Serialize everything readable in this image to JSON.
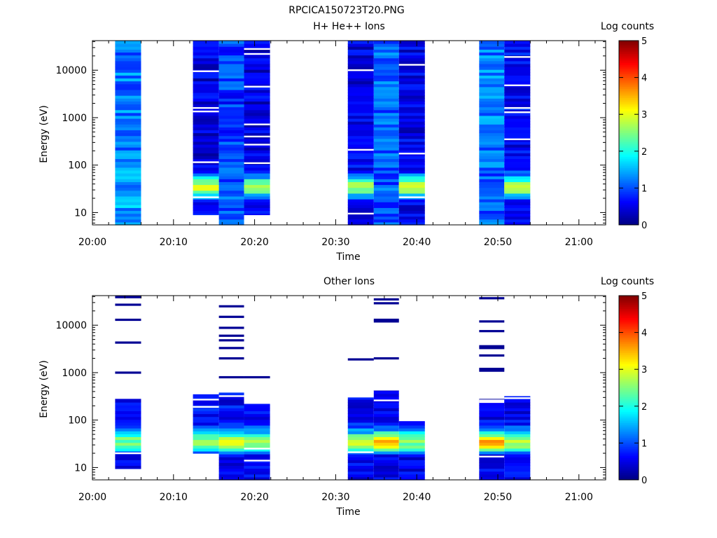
{
  "figure": {
    "title": "RPCICA150723T20.PNG"
  },
  "chart_data": [
    {
      "type": "heatmap",
      "title": "H+ He++ Ions",
      "xlabel": "Time",
      "ylabel": "Energy (eV)",
      "x_ticks": [
        "20:00",
        "20:10",
        "20:20",
        "20:30",
        "20:40",
        "20:50",
        "21:00"
      ],
      "x_range_minutes": [
        0,
        63.3
      ],
      "y_scale": "log",
      "y_ticks": [
        "10",
        "100",
        "1000",
        "10000"
      ],
      "y_range_eV": [
        5.5,
        42000
      ],
      "colorbar": {
        "label": "Log counts",
        "range": [
          0,
          5
        ],
        "ticks": [
          "0",
          "1",
          "2",
          "3",
          "4",
          "5"
        ]
      },
      "columns": [
        {
          "start_min": 2.8,
          "end_min": 6.0,
          "top_eV": 42000,
          "bottom_eV": 5.5,
          "profile": "flat",
          "base_log": 1.2,
          "low_peak": 1.6,
          "gap_energies_eV": []
        },
        {
          "start_min": 12.4,
          "end_min": 15.6,
          "top_eV": 42000,
          "bottom_eV": 9.0,
          "profile": "peak",
          "base_log": 0.45,
          "low_peak": 2.9,
          "gap_energies_eV": [
            9500,
            1600,
            1350,
            115,
            21
          ]
        },
        {
          "start_min": 15.6,
          "end_min": 18.7,
          "top_eV": 42000,
          "bottom_eV": 5.5,
          "profile": "flat",
          "base_log": 0.9,
          "low_peak": 1.2,
          "gap_energies_eV": []
        },
        {
          "start_min": 18.7,
          "end_min": 21.9,
          "top_eV": 42000,
          "bottom_eV": 9.0,
          "profile": "peak",
          "base_log": 0.5,
          "low_peak": 2.8,
          "gap_energies_eV": [
            28000,
            22000,
            4500,
            720,
            400,
            270,
            110
          ]
        },
        {
          "start_min": 31.5,
          "end_min": 34.7,
          "top_eV": 42000,
          "bottom_eV": 5.5,
          "profile": "peak",
          "base_log": 0.5,
          "low_peak": 2.8,
          "gap_energies_eV": [
            10000,
            210,
            9.5
          ]
        },
        {
          "start_min": 34.7,
          "end_min": 37.8,
          "top_eV": 42000,
          "bottom_eV": 5.5,
          "profile": "flat",
          "base_log": 1.1,
          "low_peak": 1.0,
          "gap_energies_eV": []
        },
        {
          "start_min": 37.8,
          "end_min": 41.0,
          "top_eV": 42000,
          "bottom_eV": 5.5,
          "profile": "peak",
          "base_log": 0.5,
          "low_peak": 3.0,
          "gap_energies_eV": [
            13000,
            175,
            21
          ]
        },
        {
          "start_min": 47.7,
          "end_min": 50.8,
          "top_eV": 42000,
          "bottom_eV": 5.5,
          "profile": "flat",
          "base_log": 1.2,
          "low_peak": 1.0,
          "gap_energies_eV": []
        },
        {
          "start_min": 50.8,
          "end_min": 54.0,
          "top_eV": 42000,
          "bottom_eV": 5.5,
          "profile": "peak",
          "base_log": 0.6,
          "low_peak": 2.9,
          "gap_energies_eV": [
            19000,
            4800,
            1600,
            1300,
            350
          ]
        }
      ]
    },
    {
      "type": "heatmap",
      "title": "Other Ions",
      "xlabel": "Time",
      "ylabel": "Energy (eV)",
      "x_ticks": [
        "20:00",
        "20:10",
        "20:20",
        "20:30",
        "20:40",
        "20:50",
        "21:00"
      ],
      "x_range_minutes": [
        0,
        63.3
      ],
      "y_scale": "log",
      "y_ticks": [
        "10",
        "100",
        "1000",
        "10000"
      ],
      "y_range_eV": [
        5.5,
        42000
      ],
      "colorbar": {
        "label": "Log counts",
        "range": [
          0,
          5
        ],
        "ticks": [
          "0",
          "1",
          "2",
          "3",
          "4",
          "5"
        ]
      },
      "columns": [
        {
          "start_min": 2.8,
          "end_min": 6.0,
          "top_eV": 280,
          "bottom_eV": 9.5,
          "profile": "peak",
          "base_log": 0.6,
          "low_peak": 2.5,
          "gap_energies_eV": [
            20
          ],
          "lines_eV": [
            39000,
            27000,
            13000,
            4300,
            1000
          ],
          "line_log": 0.1
        },
        {
          "start_min": 12.4,
          "end_min": 15.6,
          "top_eV": 350,
          "bottom_eV": 20,
          "profile": "peak",
          "base_log": 0.6,
          "low_peak": 2.6,
          "gap_energies_eV": [
            270,
            190
          ],
          "lines_eV": [],
          "line_log": 0.1
        },
        {
          "start_min": 15.6,
          "end_min": 18.7,
          "top_eV": 380,
          "bottom_eV": 5.5,
          "profile": "peak",
          "base_log": 0.6,
          "low_peak": 3.0,
          "gap_energies_eV": [
            320
          ],
          "lines_eV": [
            25000,
            15000,
            8800,
            6000,
            4800,
            3300,
            2000,
            800
          ],
          "line_log": 0.1
        },
        {
          "start_min": 18.7,
          "end_min": 21.9,
          "top_eV": 220,
          "bottom_eV": 5.5,
          "profile": "peak",
          "base_log": 0.6,
          "low_peak": 2.7,
          "gap_energies_eV": [
            25,
            14
          ],
          "lines_eV": [
            800
          ],
          "line_log": 0.1
        },
        {
          "start_min": 31.5,
          "end_min": 34.7,
          "top_eV": 300,
          "bottom_eV": 5.5,
          "profile": "peak",
          "base_log": 0.6,
          "low_peak": 2.8,
          "gap_energies_eV": [
            21
          ],
          "lines_eV": [
            1900
          ],
          "line_log": 0.1
        },
        {
          "start_min": 34.7,
          "end_min": 37.8,
          "top_eV": 420,
          "bottom_eV": 5.5,
          "profile": "peak",
          "base_log": 0.6,
          "low_peak": 3.5,
          "gap_energies_eV": [
            260
          ],
          "lines_eV": [
            35000,
            29000,
            13000,
            12000,
            2000
          ],
          "line_log": 0.1
        },
        {
          "start_min": 37.8,
          "end_min": 41.0,
          "top_eV": 95,
          "bottom_eV": 5.5,
          "profile": "peak",
          "base_log": 0.9,
          "low_peak": 2.6,
          "gap_energies_eV": [],
          "lines_eV": [],
          "line_log": 0.1
        },
        {
          "start_min": 47.7,
          "end_min": 50.8,
          "top_eV": 280,
          "bottom_eV": 5.5,
          "profile": "peak",
          "base_log": 0.5,
          "low_peak": 3.6,
          "gap_energies_eV": [
            260,
            240,
            17
          ],
          "lines_eV": [
            37000,
            12000,
            7500,
            3600,
            3300,
            2300,
            1200,
            1100
          ],
          "line_log": 0.1
        },
        {
          "start_min": 50.8,
          "end_min": 54.0,
          "top_eV": 320,
          "bottom_eV": 5.5,
          "profile": "peak",
          "base_log": 0.6,
          "low_peak": 2.8,
          "gap_energies_eV": [
            290
          ],
          "lines_eV": [],
          "line_log": 0.1
        }
      ]
    }
  ]
}
